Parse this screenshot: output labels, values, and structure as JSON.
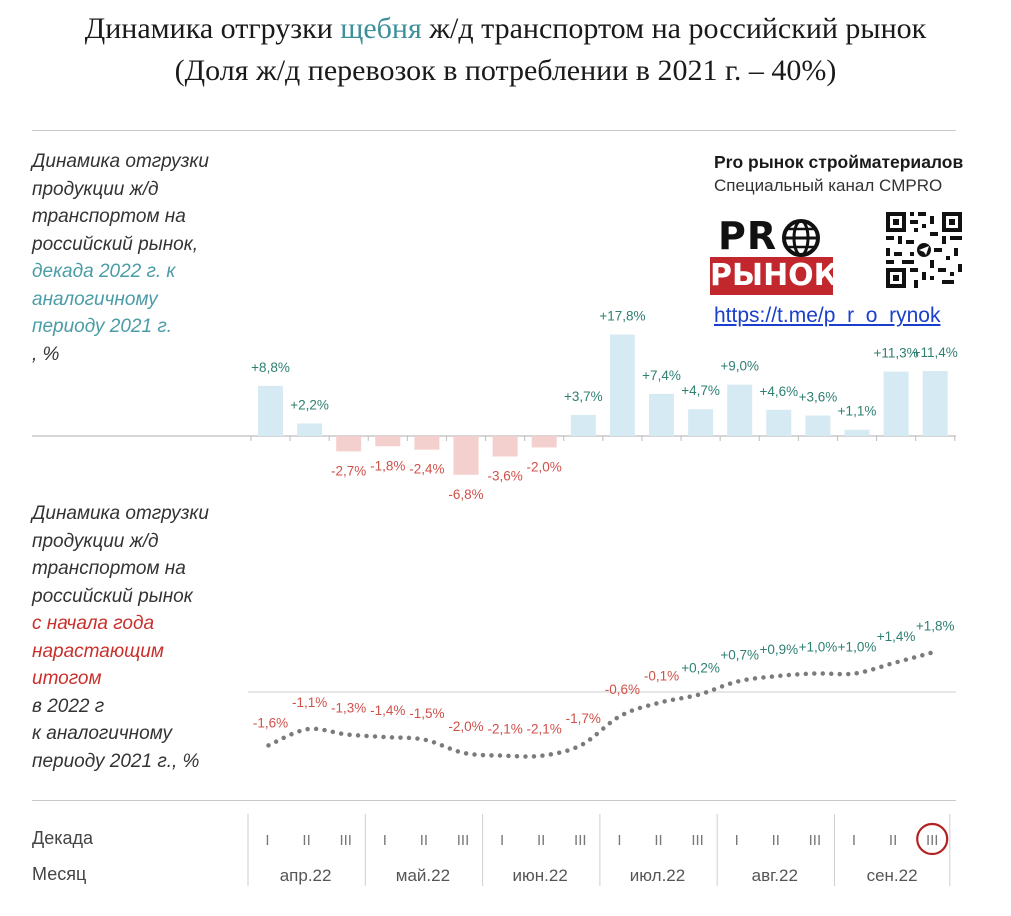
{
  "header": {
    "title_before": "Динамика отгрузки ",
    "title_accent": "щебня",
    "title_after": " ж/д транспортом на российский рынок",
    "subtitle": "(Доля ж/д перевозок в потреблении в 2021 г. – 40%)"
  },
  "top_description": {
    "line1": "Динамика отгрузки",
    "line2": "продукции ж/д",
    "line3": "транспортом на",
    "line4": "российский рынок,",
    "line5": "декада 2022 г. к",
    "line6": "аналогичному",
    "line7_colored": "периоду 2021 г.",
    "line7_rest": ", %"
  },
  "bottom_description": {
    "line1": "Динамика отгрузки",
    "line2": "продукции ж/д",
    "line3": "транспортом на",
    "line4": "российский рынок",
    "line5": "с начала года",
    "line6": "нарастающим",
    "line7_colored": "итогом",
    "line7_rest": " в 2022 г",
    "line8": "к аналогичному",
    "line9": "периоду 2021 г., %"
  },
  "brand": {
    "title": "Pro рынок стройматериалов",
    "subtitle": "Специальный канал CMPRO",
    "logo_top": "PR",
    "logo_bottom": "РЫНОК",
    "link": "https://t.me/p_r_o_rynok"
  },
  "axis": {
    "decade_label": "Декада",
    "month_label": "Месяц"
  },
  "colors": {
    "positive_bar": "#d6eaf3",
    "negative_bar": "#f3d0cd",
    "positive_text": "#2e7f72",
    "negative_text": "#d0504a",
    "line_dots": "#7b7b7b",
    "highlight_circle": "#b22222"
  },
  "chart_data": [
    {
      "type": "bar",
      "categories": [
        "I",
        "II",
        "III",
        "I",
        "II",
        "III",
        "I",
        "II",
        "III",
        "I",
        "II",
        "III",
        "I",
        "II",
        "III",
        "I",
        "II",
        "III"
      ],
      "months": [
        "апр.22",
        "май.22",
        "июн.22",
        "июл.22",
        "авг.22",
        "сен.22"
      ],
      "values": [
        8.8,
        2.2,
        -2.7,
        -1.8,
        -2.4,
        -6.8,
        -3.6,
        -2.0,
        3.7,
        17.8,
        7.4,
        4.7,
        9.0,
        4.6,
        3.6,
        1.1,
        11.3,
        11.4
      ],
      "labels": [
        "+8,8%",
        "+2,2%",
        "-2,7%",
        "-1,8%",
        "-2,4%",
        "-6,8%",
        "-3,6%",
        "-2,0%",
        "+3,7%",
        "+17,8%",
        "+7,4%",
        "+4,7%",
        "+9,0%",
        "+4,6%",
        "+3,6%",
        "+1,1%",
        "+11,3%",
        "+11,4%"
      ],
      "highlight_index": 17
    },
    {
      "type": "line",
      "categories": [
        "I",
        "II",
        "III",
        "I",
        "II",
        "III",
        "I",
        "II",
        "III",
        "I",
        "II",
        "III",
        "I",
        "II",
        "III",
        "I",
        "II",
        "III"
      ],
      "values": [
        -1.6,
        -1.1,
        -1.3,
        -1.4,
        -1.5,
        -2.0,
        -2.1,
        -2.1,
        -1.7,
        -0.6,
        -0.1,
        0.2,
        0.7,
        0.9,
        1.0,
        1.0,
        1.4,
        1.8
      ],
      "labels": [
        "-1,6%",
        "-1,1%",
        "-1,3%",
        "-1,4%",
        "-1,5%",
        "-2,0%",
        "-2,1%",
        "-2,1%",
        "-1,7%",
        "-0,6%",
        "-0,1%",
        "+0,2%",
        "+0,7%",
        "+0,9%",
        "+1,0%",
        "+1,0%",
        "+1,4%",
        "+1,8%"
      ]
    }
  ]
}
